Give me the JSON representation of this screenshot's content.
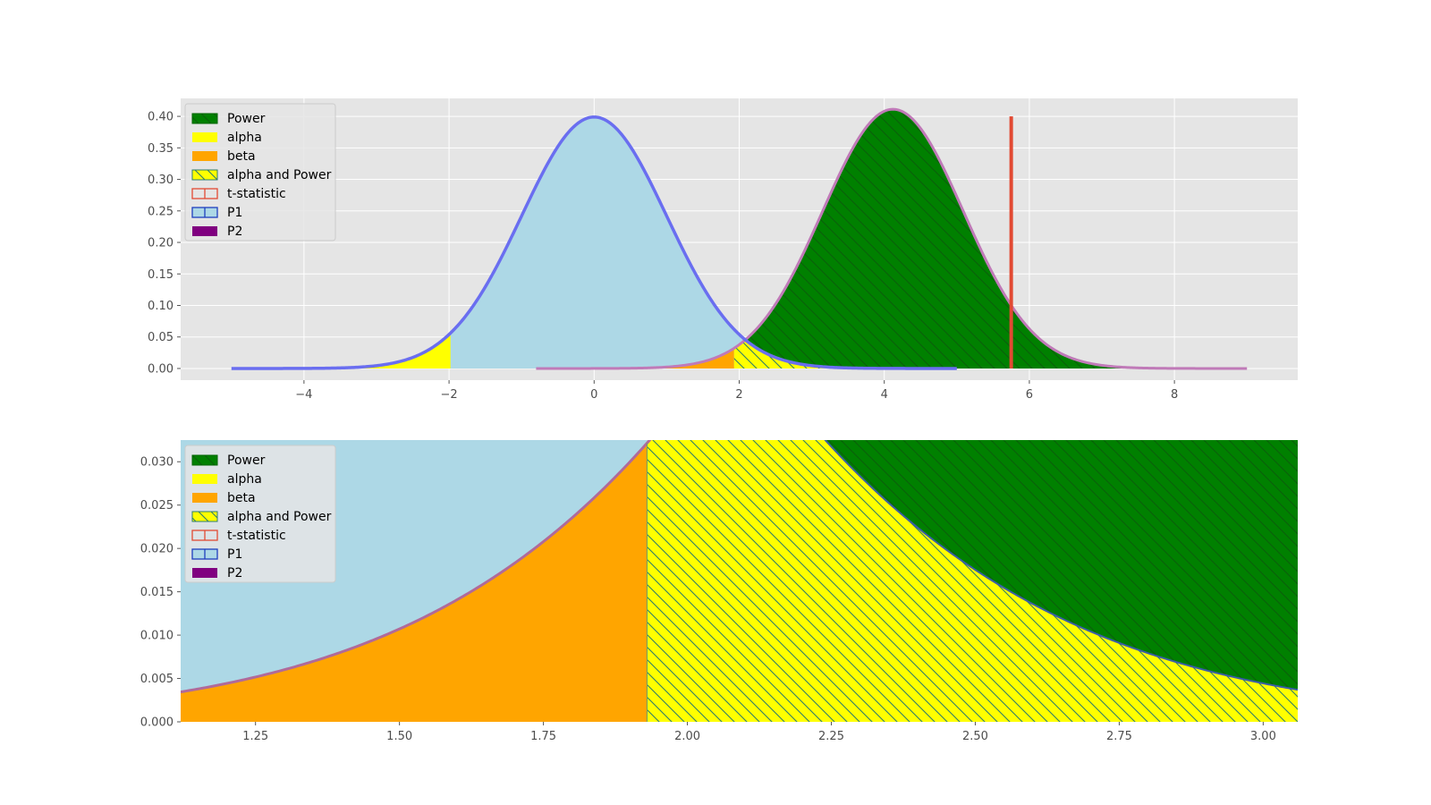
{
  "legend": [
    {
      "key": "power",
      "label": "Power"
    },
    {
      "key": "alpha",
      "label": "alpha"
    },
    {
      "key": "beta",
      "label": "beta"
    },
    {
      "key": "alpha_power",
      "label": "alpha and Power"
    },
    {
      "key": "tstat",
      "label": "t-statistic"
    },
    {
      "key": "p1",
      "label": "P1"
    },
    {
      "key": "p2",
      "label": "P2"
    }
  ],
  "colors": {
    "axes_bg": "#e5e5e5",
    "grid": "#ffffff",
    "p1_fill": "#add8e6",
    "p1_line": "#6a6ef0",
    "p2_line": "#c07ab8",
    "power": "#008000",
    "alpha": "#ffff00",
    "beta": "#ffa500",
    "tstat": "#e24a33",
    "p2_swatch": "#800080",
    "hatch_line": "#2e7d6b",
    "lower_boundary": "#b06a9a"
  },
  "chart_data": [
    {
      "type": "area",
      "panel": "full",
      "distributions": {
        "P1": {
          "mean": 0,
          "sd": 1,
          "x_range": [
            -5,
            5
          ]
        },
        "P2": {
          "mean": 4.12,
          "sd": 0.97,
          "x_range": [
            -0.8,
            9.0
          ]
        }
      },
      "critical_value": 1.93,
      "left_critical_value": -1.98,
      "t_statistic": 5.75,
      "t_statistic_height": 0.4,
      "regions": {
        "alpha": "P1 tails beyond ±critical value",
        "beta": "P2 below critical value",
        "alpha and Power": "overlap of P1 right tail and P2 above critical value",
        "Power": "P2 above critical value"
      },
      "xlim": [
        -5.7,
        9.7
      ],
      "ylim": [
        -0.0185,
        0.4285
      ],
      "xticks": [
        -4,
        -2,
        0,
        2,
        4,
        6,
        8
      ],
      "xtick_labels": [
        "−4",
        "−2",
        "0",
        "2",
        "4",
        "6",
        "8"
      ],
      "yticks": [
        0,
        0.05,
        0.1,
        0.15,
        0.2,
        0.25,
        0.3,
        0.35,
        0.4
      ],
      "ytick_labels": [
        "0.00",
        "0.05",
        "0.10",
        "0.15",
        "0.20",
        "0.25",
        "0.30",
        "0.35",
        "0.40"
      ],
      "grid": true,
      "legend_placement": "upper-left",
      "title": "",
      "xlabel": "",
      "ylabel": ""
    },
    {
      "type": "area",
      "panel": "zoom",
      "xlim": [
        1.12,
        3.06
      ],
      "ylim": [
        0.0,
        0.0325
      ],
      "xticks": [
        1.25,
        1.5,
        1.75,
        2.0,
        2.25,
        2.5,
        2.75,
        3.0
      ],
      "xtick_labels": [
        "1.25",
        "1.50",
        "1.75",
        "2.00",
        "2.25",
        "2.50",
        "2.75",
        "3.00"
      ],
      "yticks": [
        0,
        0.005,
        0.01,
        0.015,
        0.02,
        0.025,
        0.03
      ],
      "ytick_labels": [
        "0.000",
        "0.005",
        "0.010",
        "0.015",
        "0.020",
        "0.025",
        "0.030"
      ],
      "grid": false,
      "legend_placement": "upper-left",
      "title": "",
      "xlabel": "",
      "ylabel": ""
    }
  ]
}
